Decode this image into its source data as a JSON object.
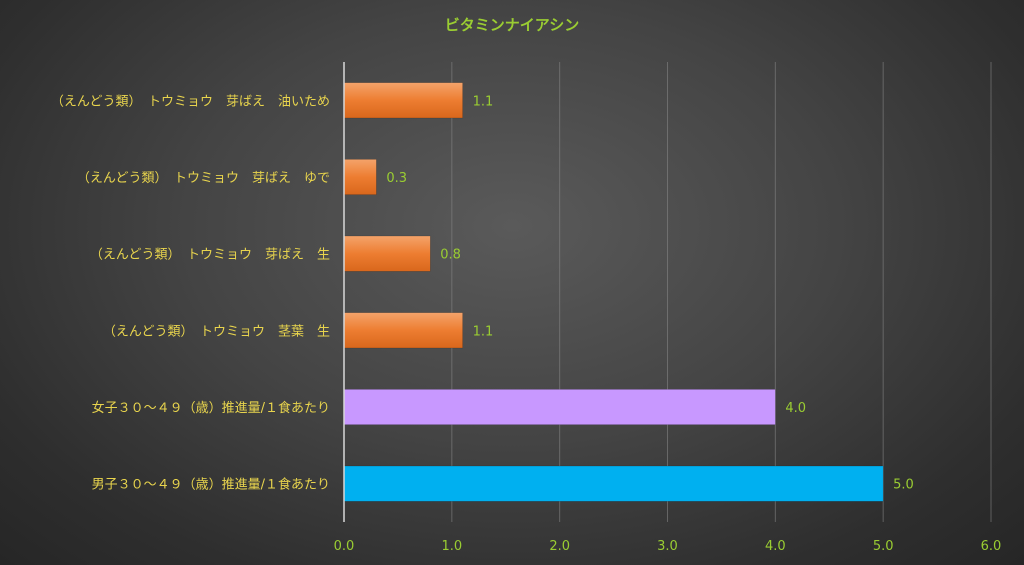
{
  "chart_data": {
    "type": "bar",
    "orientation": "horizontal",
    "title": "ビタミンナイアシン",
    "categories": [
      "（えんどう類）　トウミョウ　芽ばえ　油いため",
      "（えんどう類）　トウミョウ　芽ばえ　ゆで",
      "（えんどう類）　トウミョウ　芽ばえ　生",
      "（えんどう類）　トウミョウ　茎葉　生",
      "女子３０～４９（歳）推進量/１食あたり",
      "男子３０～４９（歳）推進量/１食あたり"
    ],
    "values": [
      1.1,
      0.3,
      0.8,
      1.1,
      4.0,
      5.0
    ],
    "value_labels": [
      "1.1",
      "0.3",
      "0.8",
      "1.1",
      "4.0",
      "5.0"
    ],
    "bar_colors": [
      "#ed7d31",
      "#ed7d31",
      "#ed7d31",
      "#ed7d31",
      "#c898ff",
      "#00b0f0"
    ],
    "xlim": [
      0,
      6
    ],
    "x_ticks": [
      "0.0",
      "1.0",
      "2.0",
      "3.0",
      "4.0",
      "5.0",
      "6.0"
    ],
    "grid": true,
    "legend": "none"
  }
}
